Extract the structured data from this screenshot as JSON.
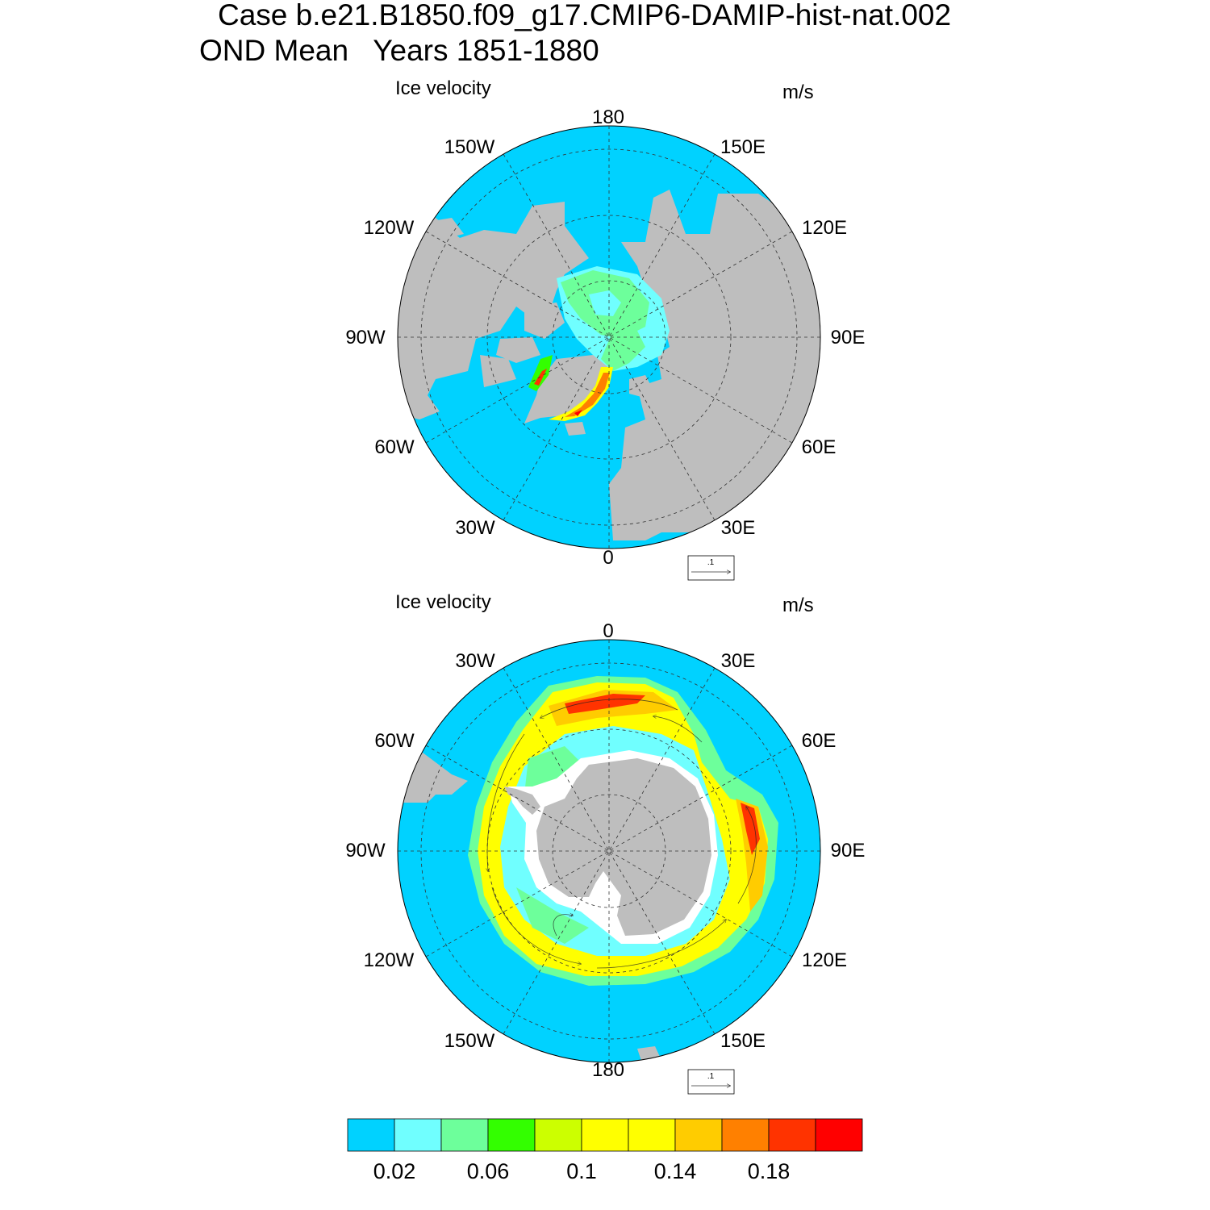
{
  "title": {
    "case_line": "Case b.e21.B1850.f09_g17.CMIP6-DAMIP-hist-nat.002",
    "period_line": "OND Mean   Years 1851-1880"
  },
  "panels": [
    {
      "hemisphere": "north",
      "left_title": "Ice velocity",
      "units": "m/s",
      "lon_labels": {
        "top": "180",
        "top_left": "150W",
        "top_right": "150E",
        "upper_left": "120W",
        "upper_right": "120E",
        "left": "90W",
        "right": "90E",
        "lower_left": "60W",
        "lower_right": "60E",
        "bottom_left": "30W",
        "bottom_right": "30E",
        "bottom": "0"
      },
      "reference_vector": ".1"
    },
    {
      "hemisphere": "south",
      "left_title": "Ice velocity",
      "units": "m/s",
      "lon_labels": {
        "top": "0",
        "top_left": "30W",
        "top_right": "30E",
        "upper_left": "60W",
        "upper_right": "60E",
        "left": "90W",
        "right": "90E",
        "lower_left": "120W",
        "lower_right": "120E",
        "bottom_left": "150W",
        "bottom_right": "150E",
        "bottom": "180"
      },
      "reference_vector": ".1"
    }
  ],
  "colorbar": {
    "colors": [
      "#00d2ff",
      "#70ffff",
      "#6dff9b",
      "#33ff00",
      "#ccff00",
      "#ffff00",
      "#ffff00",
      "#ffcc00",
      "#ff8000",
      "#ff3300",
      "#ff0000"
    ],
    "tick_labels": [
      "0.02",
      "0.06",
      "0.1",
      "0.14",
      "0.18"
    ]
  },
  "colors": {
    "ocean": "#00d2ff",
    "land": "#bebebe",
    "no_ice": "#ffffff"
  }
}
